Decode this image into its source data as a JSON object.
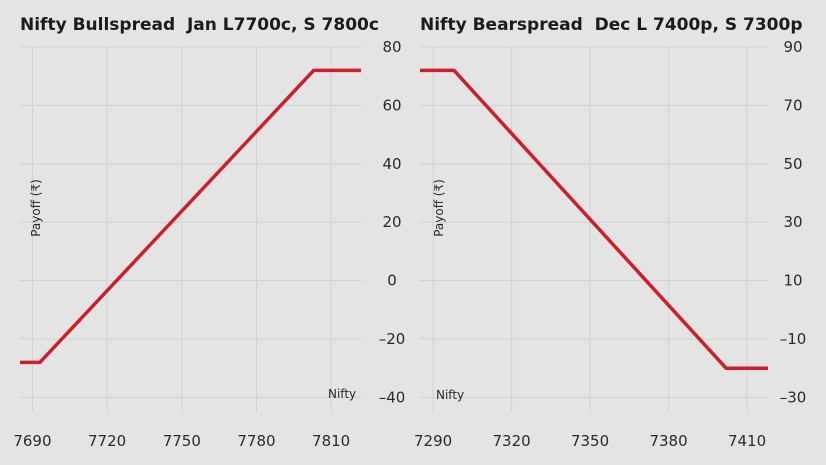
{
  "colors": {
    "background": "#e4e4e4",
    "grid": "#d2d2d2",
    "line": "#cc1f2a",
    "text": "#1b1b1b"
  },
  "chart_data": [
    {
      "type": "line",
      "title": "Nifty Bullspread  Jan L7700c, S 7800c",
      "xlabel": "Nifty",
      "ylabel": "Payoff (₹)",
      "grid": true,
      "y_axis_side": "right",
      "xlim": [
        7685,
        7822
      ],
      "ylim": [
        -45,
        80
      ],
      "x_ticks": [
        7690,
        7720,
        7750,
        7780,
        7810
      ],
      "y_ticks": [
        80,
        60,
        40,
        20,
        0,
        -20,
        -40
      ],
      "series": [
        {
          "x": [
            7685,
            7693,
            7803,
            7822
          ],
          "y": [
            -28,
            -28,
            72,
            72
          ]
        }
      ]
    },
    {
      "type": "line",
      "title": "Nifty Bearspread  Dec L 7400p, S 7300p",
      "xlabel": "Nifty",
      "ylabel": "Payoff (₹)",
      "grid": true,
      "y_axis_side": "right",
      "xlim": [
        7285,
        7418
      ],
      "ylim": [
        -35,
        90
      ],
      "x_ticks": [
        7290,
        7320,
        7350,
        7380,
        7410
      ],
      "y_ticks": [
        90,
        70,
        50,
        30,
        10,
        -10,
        -30
      ],
      "series": [
        {
          "x": [
            7285,
            7298,
            7402,
            7418
          ],
          "y": [
            82,
            82,
            -20,
            -20
          ]
        }
      ]
    }
  ]
}
